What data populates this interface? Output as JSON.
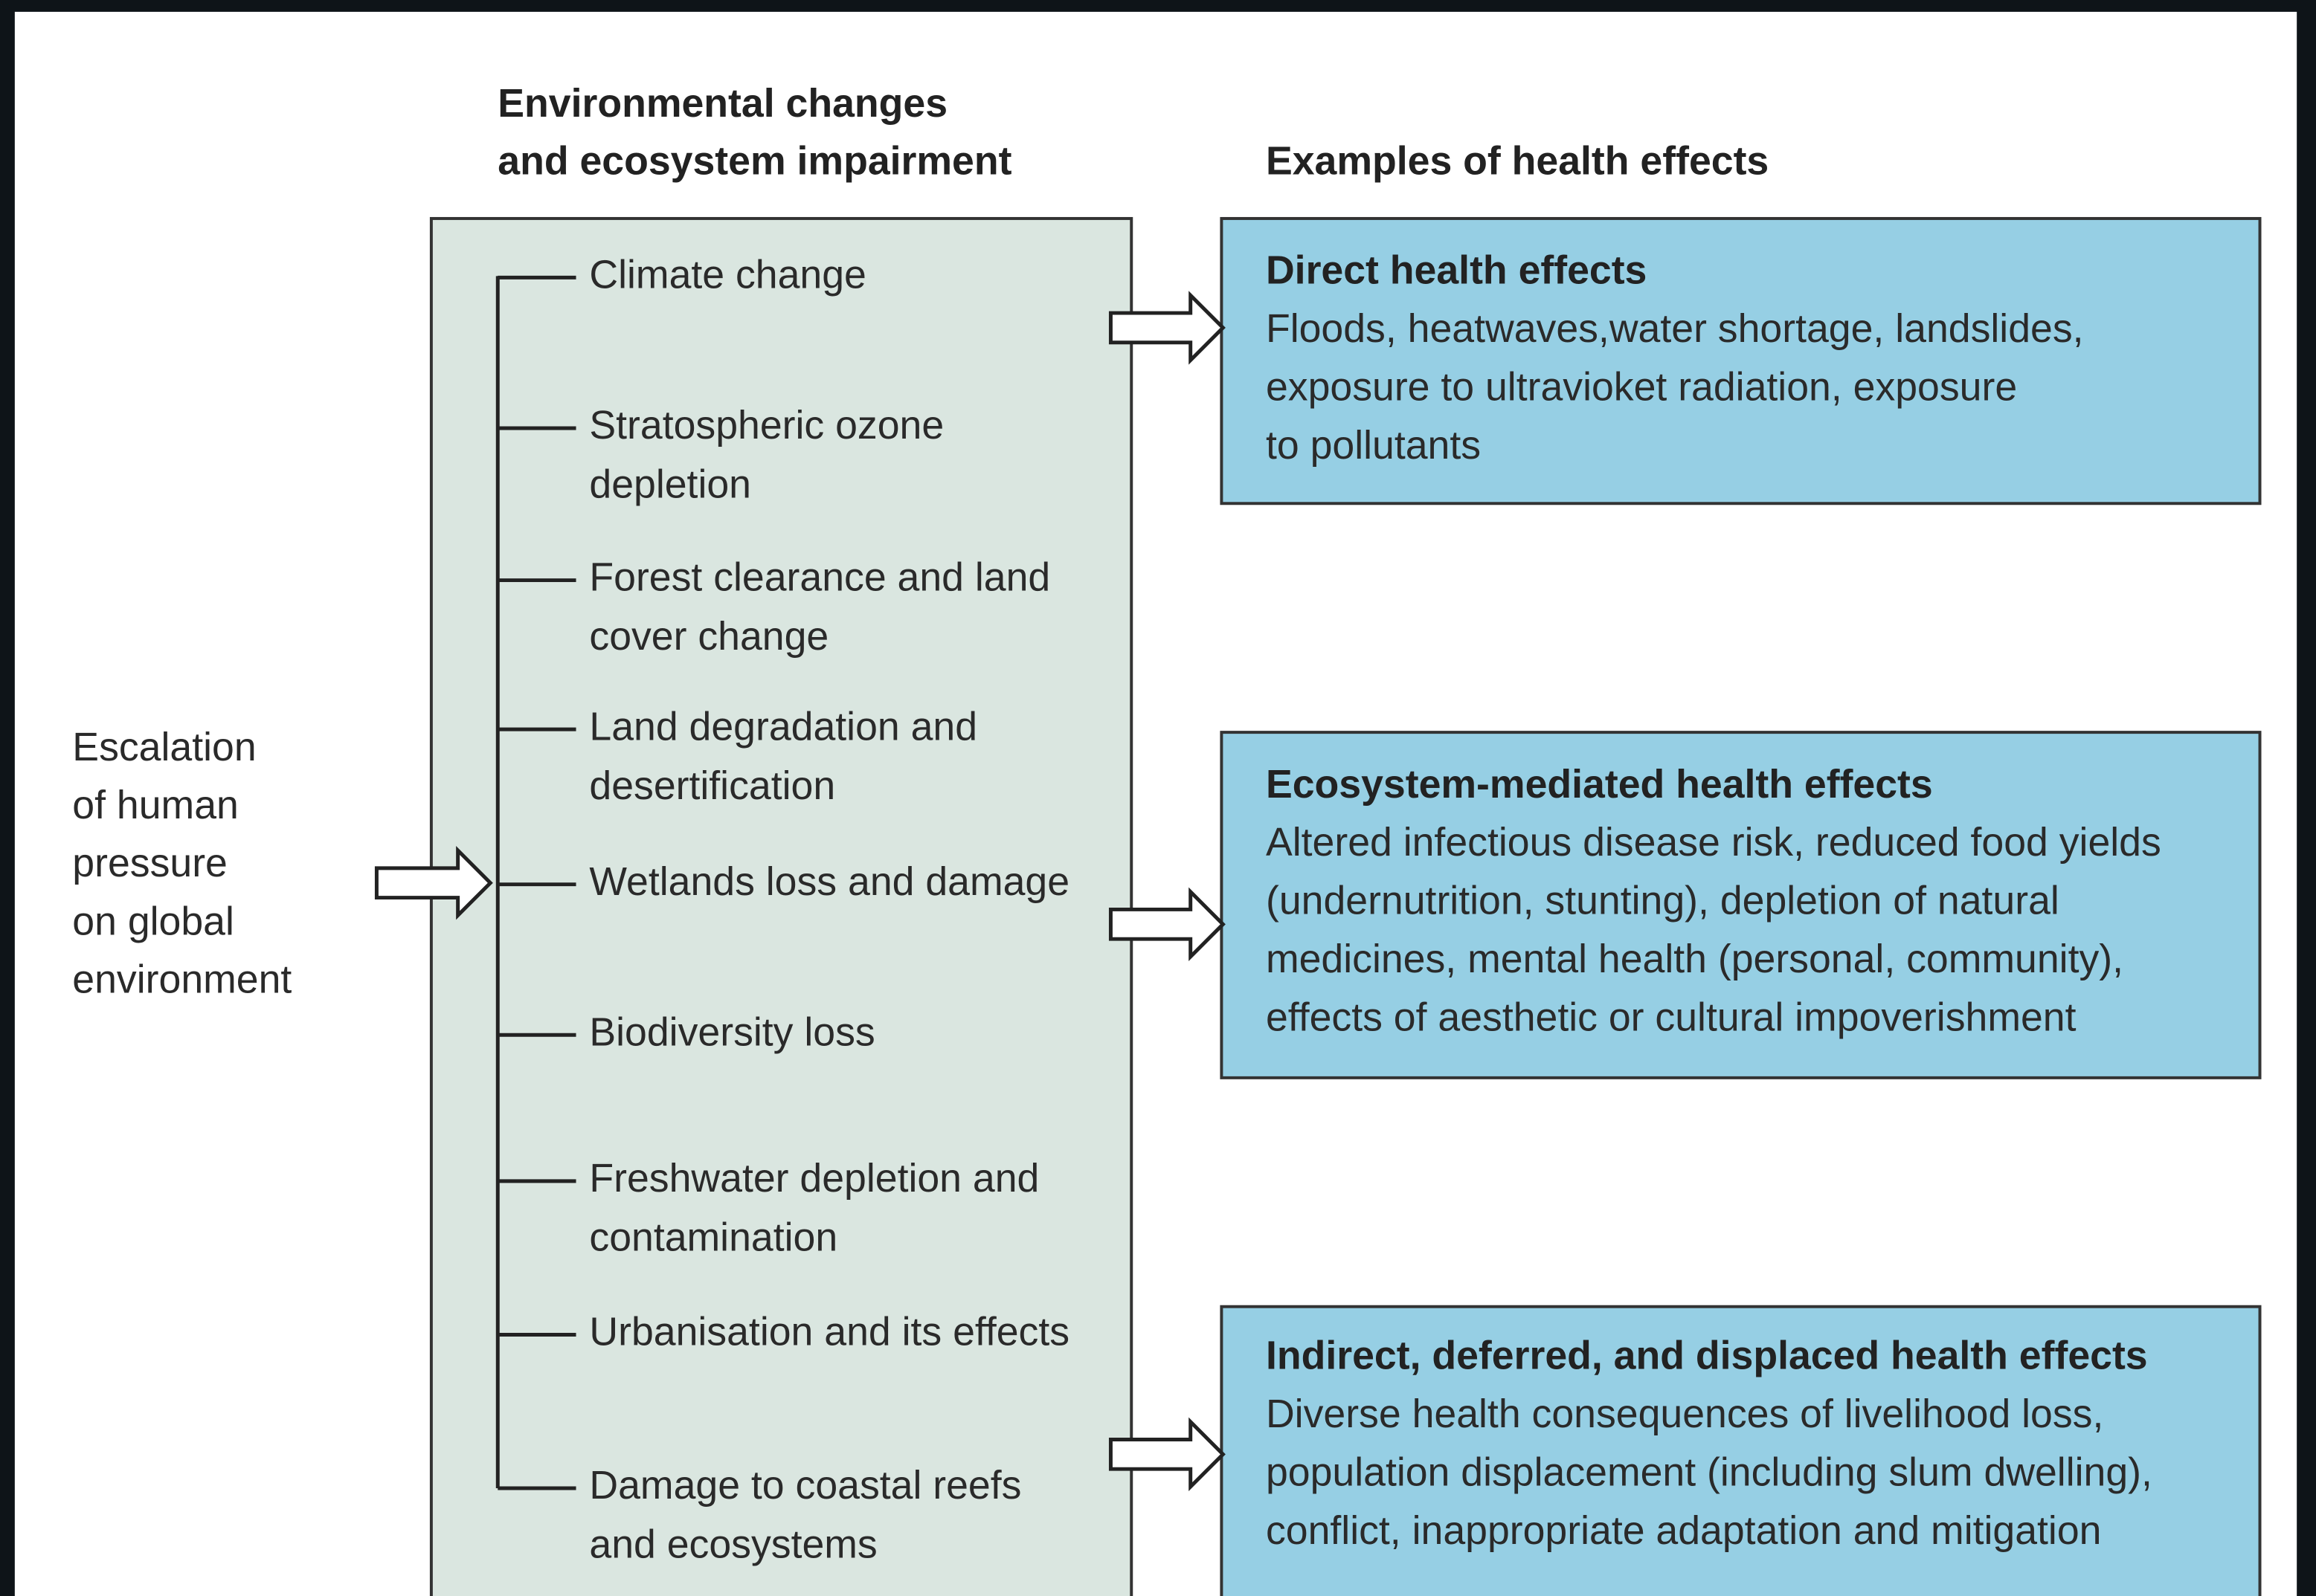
{
  "headings": {
    "environment": [
      "Environmental changes",
      "and ecosystem impairment"
    ],
    "health": "Examples of health effects"
  },
  "pressure": [
    "Escalation",
    "of human",
    "pressure",
    "on global",
    "environment"
  ],
  "items": [
    [
      "Climate change"
    ],
    [
      "Stratospheric ozone",
      "depletion"
    ],
    [
      "Forest clearance and land",
      "cover change"
    ],
    [
      "Land degradation and",
      "desertification"
    ],
    [
      "Wetlands loss and damage"
    ],
    [
      "Biodiversity loss"
    ],
    [
      "Freshwater depletion and",
      "contamination"
    ],
    [
      "Urbanisation and its effects"
    ],
    [
      "Damage to coastal reefs",
      "and ecosystems"
    ]
  ],
  "effects": [
    {
      "title": "Direct health effects",
      "lines": [
        "Floods, heatwaves,water shortage, landslides,",
        "exposure to ultravioket radiation, exposure",
        "to pollutants"
      ]
    },
    {
      "title": "Ecosystem-mediated health effects",
      "lines": [
        "Altered infectious disease risk, reduced food yields",
        "(undernutrition, stunting), depletion of natural",
        "medicines, mental health (personal, community),",
        "effects of aesthetic or cultural impoverishment"
      ]
    },
    {
      "title": "Indirect, deferred, and displaced health effects",
      "lines": [
        "Diverse health consequences of livelihood loss,",
        "population displacement (including slum dwelling),",
        "conflict, inappropriate adaptation and mitigation"
      ]
    }
  ]
}
